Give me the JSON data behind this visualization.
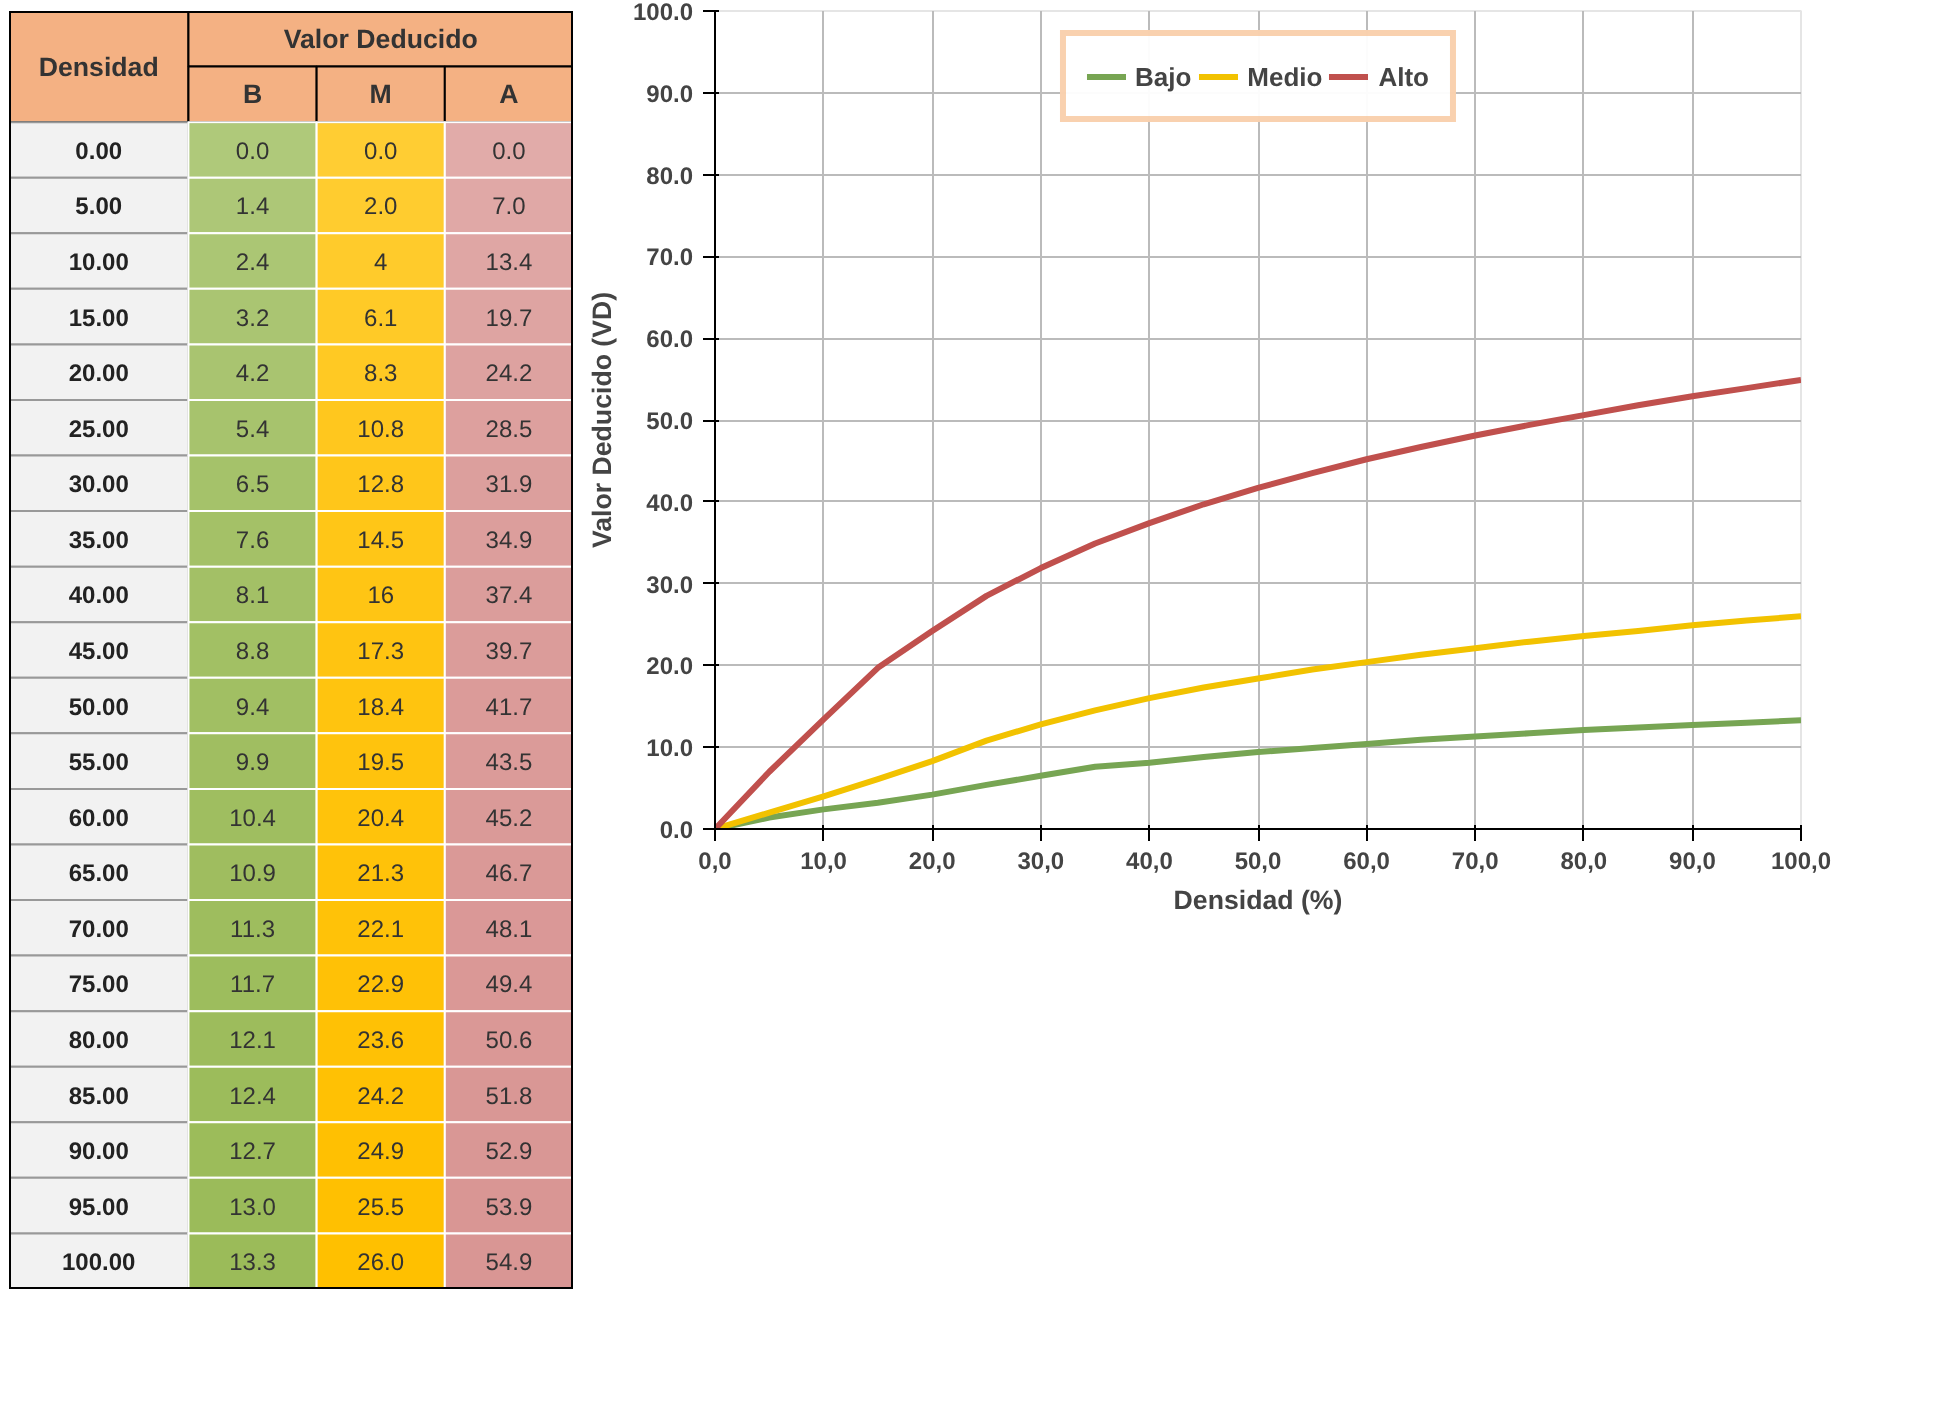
{
  "chart_data": [
    {
      "type": "heatmap",
      "annotations": [
        "Densidad",
        "Valor Deducido"
      ],
      "categories": [
        "B",
        "M",
        "A"
      ],
      "colors": [
        "#9bbb59",
        "#ffc000",
        "#d99694"
      ],
      "y_categories": [
        "0.00",
        "5.00",
        "10.00",
        "15.00",
        "20.00",
        "25.00",
        "30.00",
        "35.00",
        "40.00",
        "45.00",
        "50.00",
        "55.00",
        "60.00",
        "65.00",
        "70.00",
        "75.00",
        "80.00",
        "85.00",
        "90.00",
        "95.00",
        "100.00"
      ],
      "data_labels": true,
      "cells": [
        [
          0.0,
          0.0,
          0.0
        ],
        [
          1.4,
          2.0,
          7.0
        ],
        [
          2.4,
          4,
          13.4
        ],
        [
          3.2,
          6.1,
          19.7
        ],
        [
          4.2,
          8.3,
          24.2
        ],
        [
          5.4,
          10.8,
          28.5
        ],
        [
          6.5,
          12.8,
          31.9
        ],
        [
          7.6,
          14.5,
          34.9
        ],
        [
          8.1,
          16,
          37.4
        ],
        [
          8.8,
          17.3,
          39.7
        ],
        [
          9.4,
          18.4,
          41.7
        ],
        [
          9.9,
          19.5,
          43.5
        ],
        [
          10.4,
          20.4,
          45.2
        ],
        [
          10.9,
          21.3,
          46.7
        ],
        [
          11.3,
          22.1,
          48.1
        ],
        [
          11.7,
          22.9,
          49.4
        ],
        [
          12.1,
          23.6,
          50.6
        ],
        [
          12.4,
          24.2,
          51.8
        ],
        [
          12.7,
          24.9,
          52.9
        ],
        [
          13.0,
          25.5,
          53.9
        ],
        [
          13.3,
          26.0,
          54.9
        ]
      ],
      "cell_labels": [
        [
          "0.0",
          "0.0",
          "0.0"
        ],
        [
          "1.4",
          "2.0",
          "7.0"
        ],
        [
          "2.4",
          "4",
          "13.4"
        ],
        [
          "3.2",
          "6.1",
          "19.7"
        ],
        [
          "4.2",
          "8.3",
          "24.2"
        ],
        [
          "5.4",
          "10.8",
          "28.5"
        ],
        [
          "6.5",
          "12.8",
          "31.9"
        ],
        [
          "7.6",
          "14.5",
          "34.9"
        ],
        [
          "8.1",
          "16",
          "37.4"
        ],
        [
          "8.8",
          "17.3",
          "39.7"
        ],
        [
          "9.4",
          "18.4",
          "41.7"
        ],
        [
          "9.9",
          "19.5",
          "43.5"
        ],
        [
          "10.4",
          "20.4",
          "45.2"
        ],
        [
          "10.9",
          "21.3",
          "46.7"
        ],
        [
          "11.3",
          "22.1",
          "48.1"
        ],
        [
          "11.7",
          "22.9",
          "49.4"
        ],
        [
          "12.1",
          "23.6",
          "50.6"
        ],
        [
          "12.4",
          "24.2",
          "51.8"
        ],
        [
          "12.7",
          "24.9",
          "52.9"
        ],
        [
          "13.0",
          "25.5",
          "53.9"
        ],
        [
          "13.3",
          "26.0",
          "54.9"
        ]
      ]
    },
    {
      "type": "line",
      "xlabel": "Densidad (%)",
      "ylabel": "Valor Deducido (VD)",
      "x": [
        0,
        5,
        10,
        15,
        20,
        25,
        30,
        35,
        40,
        45,
        50,
        55,
        60,
        65,
        70,
        75,
        80,
        85,
        90,
        95,
        100
      ],
      "series": [
        {
          "name": "Bajo",
          "color": "#77a553",
          "values": [
            0.0,
            1.4,
            2.4,
            3.2,
            4.2,
            5.4,
            6.5,
            7.6,
            8.1,
            8.8,
            9.4,
            9.9,
            10.4,
            10.9,
            11.3,
            11.7,
            12.1,
            12.4,
            12.7,
            13.0,
            13.3
          ]
        },
        {
          "name": "Medio",
          "color": "#f2c200",
          "values": [
            0.0,
            2.0,
            4,
            6.1,
            8.3,
            10.8,
            12.8,
            14.5,
            16,
            17.3,
            18.4,
            19.5,
            20.4,
            21.3,
            22.1,
            22.9,
            23.6,
            24.2,
            24.9,
            25.5,
            26.0
          ]
        },
        {
          "name": "Alto",
          "color": "#c0504d",
          "values": [
            0.0,
            7.0,
            13.4,
            19.7,
            24.2,
            28.5,
            31.9,
            34.9,
            37.4,
            39.7,
            41.7,
            43.5,
            45.2,
            46.7,
            48.1,
            49.4,
            50.6,
            51.8,
            52.9,
            53.9,
            54.9
          ]
        }
      ],
      "xlim": [
        0,
        100
      ],
      "ylim": [
        0,
        100
      ],
      "xticks": [
        {
          "value": 0,
          "label": "0,0"
        },
        {
          "value": 10,
          "label": "10,0"
        },
        {
          "value": 20,
          "label": "20,0"
        },
        {
          "value": 30,
          "label": "30,0"
        },
        {
          "value": 40,
          "label": "40,0"
        },
        {
          "value": 50,
          "label": "50,0"
        },
        {
          "value": 60,
          "label": "60,0"
        },
        {
          "value": 70,
          "label": "70,0"
        },
        {
          "value": 80,
          "label": "80,0"
        },
        {
          "value": 90,
          "label": "90,0"
        },
        {
          "value": 100,
          "label": "100,0"
        }
      ],
      "yticks": [
        {
          "value": 0,
          "label": "0.0"
        },
        {
          "value": 10,
          "label": "10.0"
        },
        {
          "value": 20,
          "label": "20.0"
        },
        {
          "value": 30,
          "label": "30.0"
        },
        {
          "value": 40,
          "label": "40.0"
        },
        {
          "value": 50,
          "label": "50.0"
        },
        {
          "value": 60,
          "label": "60.0"
        },
        {
          "value": 70,
          "label": "70.0"
        },
        {
          "value": 80,
          "label": "80.0"
        },
        {
          "value": 90,
          "label": "90.0"
        },
        {
          "value": 100,
          "label": "100.0"
        }
      ],
      "grid": true,
      "legend": "top",
      "line_style": "solid"
    }
  ]
}
